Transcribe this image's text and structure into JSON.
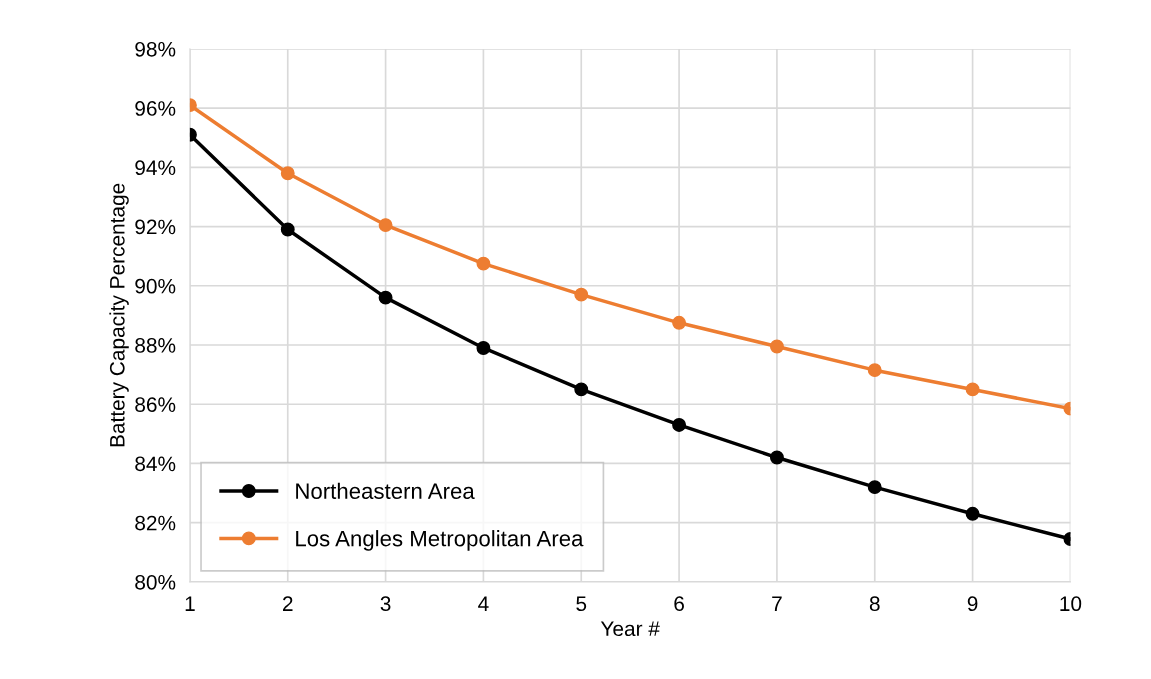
{
  "chart_data": {
    "type": "line",
    "xlabel": "Year #",
    "ylabel": "Battery Capacity Percentage",
    "x": [
      1,
      2,
      3,
      4,
      5,
      6,
      7,
      8,
      9,
      10
    ],
    "series": [
      {
        "name": "Northeastern Area",
        "color": "#000000",
        "values": [
          95.1,
          91.9,
          89.6,
          87.9,
          86.5,
          85.3,
          84.2,
          83.2,
          82.3,
          81.45
        ]
      },
      {
        "name": "Los Angles Metropolitan Area",
        "color": "#ed7d31",
        "values": [
          96.1,
          93.8,
          92.05,
          90.75,
          89.7,
          88.75,
          87.95,
          87.15,
          86.5,
          85.85
        ]
      }
    ],
    "xlim": [
      1,
      10
    ],
    "xticks": [
      1,
      2,
      3,
      4,
      5,
      6,
      7,
      8,
      9,
      10
    ],
    "ylim": [
      80,
      98
    ],
    "yticks": [
      {
        "value": 80,
        "label": "80%"
      },
      {
        "value": 82,
        "label": "82%"
      },
      {
        "value": 84,
        "label": "84%"
      },
      {
        "value": 86,
        "label": "86%"
      },
      {
        "value": 88,
        "label": "88%"
      },
      {
        "value": 90,
        "label": "90%"
      },
      {
        "value": 92,
        "label": "92%"
      },
      {
        "value": 94,
        "label": "94%"
      },
      {
        "value": 96,
        "label": "96%"
      },
      {
        "value": 98,
        "label": "98%"
      }
    ],
    "grid": true,
    "legend": "bottom left",
    "marker": "circle",
    "line_style": "solid"
  }
}
